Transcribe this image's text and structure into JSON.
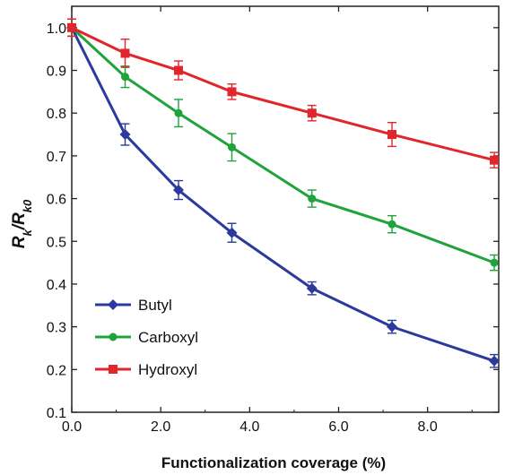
{
  "chart_data": {
    "type": "line",
    "title": "",
    "xlabel": "Functionalization coverage (%)",
    "ylabel_main": "R",
    "ylabel_sub1": "k",
    "ylabel_slash": "/R",
    "ylabel_sub2": "k0",
    "xlim": [
      0,
      9.6
    ],
    "ylim": [
      0.1,
      1.05
    ],
    "x_ticks": [
      {
        "value": 0,
        "label": "0.0"
      },
      {
        "value": 2,
        "label": "2.0"
      },
      {
        "value": 4,
        "label": "4.0"
      },
      {
        "value": 6,
        "label": "6.0"
      },
      {
        "value": 8,
        "label": "8.0"
      }
    ],
    "y_ticks": [
      {
        "value": 0.1,
        "label": "0.1"
      },
      {
        "value": 0.2,
        "label": "0.2"
      },
      {
        "value": 0.3,
        "label": "0.3"
      },
      {
        "value": 0.4,
        "label": "0.4"
      },
      {
        "value": 0.5,
        "label": "0.5"
      },
      {
        "value": 0.6,
        "label": "0.6"
      },
      {
        "value": 0.7,
        "label": "0.7"
      },
      {
        "value": 0.8,
        "label": "0.8"
      },
      {
        "value": 0.9,
        "label": "0.9"
      },
      {
        "value": 1.0,
        "label": "1.0"
      }
    ],
    "grid": false,
    "legend_position": "bottom-left",
    "series": [
      {
        "name": "Butyl",
        "color": "#2b3a9c",
        "marker": "diamond",
        "x": [
          0,
          1.2,
          2.4,
          3.6,
          5.4,
          7.2,
          9.5
        ],
        "y": [
          1.0,
          0.75,
          0.62,
          0.52,
          0.39,
          0.3,
          0.22
        ],
        "err": [
          0.02,
          0.025,
          0.022,
          0.022,
          0.015,
          0.015,
          0.015
        ]
      },
      {
        "name": "Carboxyl",
        "color": "#1fa33a",
        "marker": "circle",
        "x": [
          0,
          1.2,
          2.4,
          3.6,
          5.4,
          7.2,
          9.5
        ],
        "y": [
          1.0,
          0.885,
          0.8,
          0.72,
          0.6,
          0.54,
          0.45
        ],
        "err": [
          0.02,
          0.025,
          0.032,
          0.032,
          0.02,
          0.02,
          0.018
        ]
      },
      {
        "name": "Hydroxyl",
        "color": "#e0262b",
        "marker": "square",
        "x": [
          0,
          1.2,
          2.4,
          3.6,
          5.4,
          7.2,
          9.5
        ],
        "y": [
          1.0,
          0.94,
          0.9,
          0.85,
          0.8,
          0.75,
          0.69
        ],
        "err": [
          0.02,
          0.033,
          0.022,
          0.018,
          0.018,
          0.028,
          0.018
        ]
      }
    ]
  }
}
